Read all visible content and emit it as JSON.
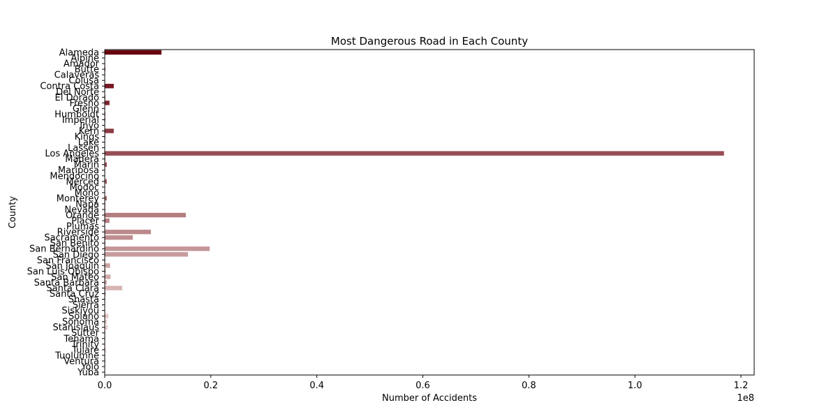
{
  "chart_data": {
    "type": "bar",
    "orientation": "horizontal",
    "title": "Most Dangerous Road in Each County",
    "xlabel": "Number of Accidents",
    "ylabel": "County",
    "x_scale_label": "1e8",
    "xlim": [
      0,
      1.225
    ],
    "x_ticks": [
      "0.0",
      "0.2",
      "0.4",
      "0.6",
      "0.8",
      "1.0",
      "1.2"
    ],
    "x_tick_values": [
      0,
      0.2,
      0.4,
      0.6,
      0.8,
      1.0,
      1.2
    ],
    "grid": false,
    "legend": "none",
    "palette_from": "#67000d",
    "palette_to": "#fff5f0",
    "categories": [
      "Alameda",
      "Alpine",
      "Amador",
      "Butte",
      "Calaveras",
      "Colusa",
      "Contra Costa",
      "Del Norte",
      "El Dorado",
      "Fresno",
      "Glenn",
      "Humboldt",
      "Imperial",
      "Inyo",
      "Kern",
      "Kings",
      "Lake",
      "Lassen",
      "Los Angeles",
      "Madera",
      "Marin",
      "Mariposa",
      "Mendocino",
      "Merced",
      "Modoc",
      "Mono",
      "Monterey",
      "Napa",
      "Nevada",
      "Orange",
      "Placer",
      "Plumas",
      "Riverside",
      "Sacramento",
      "San Benito",
      "San Bernardino",
      "San Diego",
      "San Francisco",
      "San Joaquin",
      "San Luis Obispo",
      "San Mateo",
      "Santa Barbara",
      "Santa Clara",
      "Santa Cruz",
      "Shasta",
      "Sierra",
      "Siskiyou",
      "Solano",
      "Sonoma",
      "Stanislaus",
      "Sutter",
      "Tehama",
      "Trinity",
      "Tulare",
      "Tuolumne",
      "Ventura",
      "Yolo",
      "Yuba"
    ],
    "values": [
      0.107,
      0.0,
      0.0,
      0.001,
      0.0,
      0.0,
      0.017,
      0.0,
      0.001,
      0.009,
      0.0,
      0.001,
      0.001,
      0.0,
      0.017,
      0.001,
      0.0,
      0.0,
      1.168,
      0.001,
      0.004,
      0.0,
      0.0,
      0.004,
      0.0,
      0.0,
      0.004,
      0.001,
      0.001,
      0.153,
      0.009,
      0.0,
      0.087,
      0.053,
      0.001,
      0.198,
      0.157,
      0.001,
      0.01,
      0.002,
      0.011,
      0.004,
      0.033,
      0.002,
      0.001,
      0.0,
      0.0,
      0.007,
      0.004,
      0.006,
      0.001,
      0.001,
      0.0,
      0.003,
      0.001,
      0.003,
      0.001,
      0.001
    ]
  }
}
